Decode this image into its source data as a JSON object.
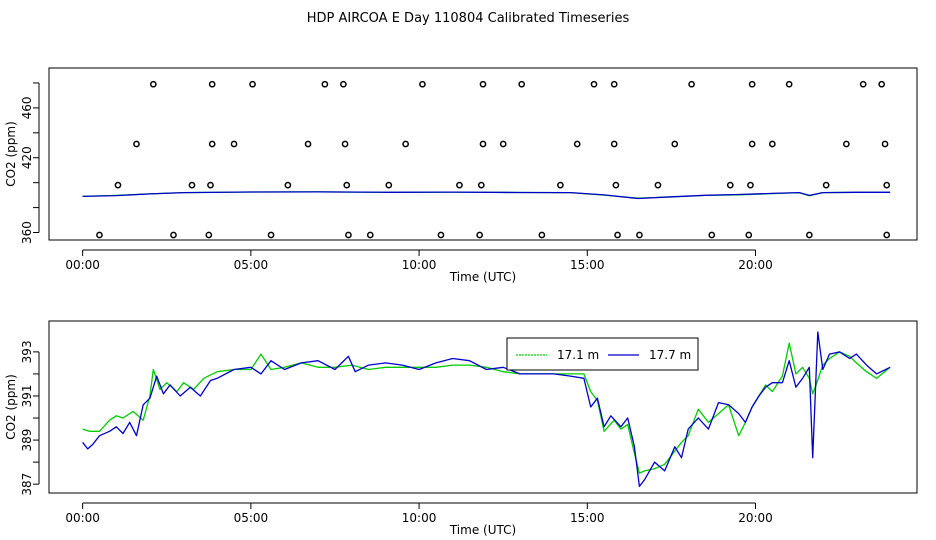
{
  "title": "HDP AIRCOA E  Day 110804  Calibrated Timeseries",
  "colors": {
    "series_a": "#00cc00",
    "series_b": "#0000cc",
    "points": "#000000"
  },
  "chart_data": [
    {
      "type": "scatter",
      "name": "top",
      "xlabel": "Time (UTC)",
      "ylabel": "CO2 (ppm)",
      "xlim": [
        -1,
        24.8
      ],
      "ylim": [
        354,
        492
      ],
      "x_ticks": [
        0,
        5,
        10,
        15,
        20
      ],
      "x_tick_labels": [
        "00:00",
        "05:00",
        "10:00",
        "15:00",
        "20:00"
      ],
      "y_ticks": [
        360,
        380,
        400,
        420,
        440,
        460,
        480
      ],
      "y_tick_labels": [
        "360",
        "",
        "",
        "420",
        "",
        "460",
        ""
      ],
      "points": [
        [
          2.1,
          479
        ],
        [
          3.85,
          479
        ],
        [
          5.05,
          479
        ],
        [
          7.2,
          479
        ],
        [
          7.75,
          479
        ],
        [
          10.1,
          479
        ],
        [
          11.9,
          479
        ],
        [
          13.05,
          479
        ],
        [
          15.2,
          479
        ],
        [
          15.8,
          479
        ],
        [
          18.1,
          479
        ],
        [
          19.9,
          479
        ],
        [
          21.0,
          479
        ],
        [
          23.2,
          479
        ],
        [
          23.75,
          479
        ],
        [
          1.6,
          431
        ],
        [
          3.85,
          431
        ],
        [
          4.5,
          431
        ],
        [
          6.7,
          431
        ],
        [
          7.8,
          431
        ],
        [
          9.6,
          431
        ],
        [
          11.9,
          431
        ],
        [
          12.5,
          431
        ],
        [
          14.7,
          431
        ],
        [
          15.8,
          431
        ],
        [
          17.6,
          431
        ],
        [
          19.9,
          431
        ],
        [
          20.5,
          431
        ],
        [
          22.7,
          431
        ],
        [
          23.85,
          431
        ],
        [
          1.05,
          398
        ],
        [
          3.25,
          398
        ],
        [
          3.8,
          398
        ],
        [
          6.1,
          398
        ],
        [
          7.85,
          398
        ],
        [
          9.1,
          398
        ],
        [
          11.2,
          398
        ],
        [
          11.85,
          398
        ],
        [
          14.2,
          398
        ],
        [
          15.85,
          398
        ],
        [
          17.1,
          398
        ],
        [
          19.25,
          398
        ],
        [
          19.85,
          398
        ],
        [
          22.1,
          398
        ],
        [
          23.9,
          398
        ],
        [
          0.5,
          358
        ],
        [
          2.7,
          358
        ],
        [
          3.75,
          358
        ],
        [
          5.6,
          358
        ],
        [
          7.9,
          358
        ],
        [
          8.55,
          358
        ],
        [
          10.65,
          358
        ],
        [
          11.8,
          358
        ],
        [
          13.65,
          358
        ],
        [
          15.9,
          358
        ],
        [
          16.55,
          358
        ],
        [
          18.7,
          358
        ],
        [
          19.8,
          358
        ],
        [
          21.6,
          358
        ],
        [
          23.9,
          358
        ]
      ],
      "series": [
        {
          "x": [
            0.0,
            1.0,
            2.0,
            3.0,
            5.0,
            7.0,
            9.0,
            11.0,
            13.0,
            14.5,
            15.5,
            16.5,
            17.5,
            18.5,
            19.5,
            20.5,
            21.3,
            21.6,
            22.0,
            23.0,
            24.0
          ],
          "y": [
            389,
            389.8,
            391,
            392,
            392.5,
            392.6,
            392.3,
            392.4,
            392.1,
            392,
            390,
            387.5,
            388.5,
            389.8,
            390.3,
            391.2,
            392,
            389.5,
            392,
            392.3,
            392.3
          ]
        },
        {
          "x": [
            0.0,
            1.0,
            2.0,
            3.0,
            5.0,
            7.0,
            9.0,
            11.0,
            13.0,
            14.5,
            15.5,
            16.5,
            17.5,
            18.5,
            19.5,
            20.5,
            21.3,
            21.6,
            22.0,
            23.0,
            24.0
          ],
          "y": [
            389,
            389.6,
            391,
            392,
            392.5,
            392.6,
            392.3,
            392.4,
            392.1,
            392,
            390.2,
            387.3,
            388.7,
            389.9,
            390.5,
            391.4,
            392,
            389.8,
            392,
            392.3,
            392.3
          ]
        }
      ]
    },
    {
      "type": "line",
      "name": "bottom",
      "xlabel": "Time (UTC)",
      "ylabel": "CO2 (ppm)",
      "xlim": [
        -1,
        24.8
      ],
      "ylim": [
        386.6,
        394.4
      ],
      "x_ticks": [
        0,
        5,
        10,
        15,
        20
      ],
      "x_tick_labels": [
        "00:00",
        "05:00",
        "10:00",
        "15:00",
        "20:00"
      ],
      "y_ticks": [
        387,
        388,
        389,
        390,
        391,
        392,
        393
      ],
      "y_tick_labels": [
        "387",
        "",
        "389",
        "",
        "391",
        "",
        "393"
      ],
      "legend": {
        "placement": "top-center",
        "entries": [
          "17.1 m",
          "17.7 m"
        ]
      },
      "series": [
        {
          "name": "17.1 m",
          "x": [
            0.0,
            0.2,
            0.5,
            0.8,
            1.0,
            1.2,
            1.5,
            1.8,
            2.0,
            2.1,
            2.3,
            2.5,
            2.8,
            3.0,
            3.3,
            3.6,
            4.0,
            4.5,
            5.0,
            5.3,
            5.6,
            6.0,
            6.5,
            7.0,
            7.5,
            8.0,
            8.5,
            9.0,
            9.5,
            10.0,
            10.5,
            11.0,
            11.5,
            12.0,
            12.5,
            13.0,
            13.5,
            14.0,
            14.5,
            14.9,
            15.1,
            15.3,
            15.5,
            15.8,
            16.0,
            16.2,
            16.4,
            16.55,
            16.7,
            17.0,
            17.3,
            17.6,
            17.8,
            18.0,
            18.3,
            18.6,
            18.9,
            19.2,
            19.5,
            19.7,
            19.9,
            20.1,
            20.3,
            20.5,
            20.8,
            21.0,
            21.2,
            21.4,
            21.6,
            21.7,
            21.8,
            22.0,
            22.2,
            22.5,
            22.8,
            23.0,
            23.3,
            23.6,
            24.0
          ],
          "y": [
            389.5,
            389.4,
            389.4,
            389.9,
            390.1,
            390.0,
            390.3,
            389.9,
            391.0,
            392.2,
            391.3,
            391.6,
            391.2,
            391.6,
            391.3,
            391.8,
            392.1,
            392.2,
            392.2,
            392.9,
            392.2,
            392.3,
            392.5,
            392.3,
            392.3,
            392.4,
            392.2,
            392.3,
            392.3,
            392.3,
            392.3,
            392.4,
            392.4,
            392.3,
            392.1,
            392.0,
            392.0,
            392.0,
            392.0,
            392.0,
            391.2,
            390.8,
            389.4,
            389.9,
            389.5,
            389.7,
            388.4,
            387.5,
            387.6,
            387.7,
            387.9,
            388.5,
            388.9,
            389.2,
            390.4,
            389.8,
            390.2,
            390.6,
            389.2,
            389.8,
            390.5,
            391.0,
            391.5,
            391.2,
            391.9,
            393.4,
            392.0,
            392.3,
            391.8,
            391.1,
            391.5,
            392.4,
            392.7,
            393.0,
            392.8,
            392.5,
            392.1,
            391.8,
            392.3
          ]
        },
        {
          "name": "17.7 m",
          "x": [
            0.0,
            0.15,
            0.3,
            0.5,
            0.8,
            1.0,
            1.2,
            1.4,
            1.6,
            1.8,
            2.0,
            2.2,
            2.4,
            2.6,
            2.9,
            3.2,
            3.5,
            3.8,
            4.0,
            4.5,
            5.0,
            5.3,
            5.6,
            6.0,
            6.5,
            7.0,
            7.5,
            7.9,
            8.1,
            8.5,
            9.0,
            9.5,
            10.0,
            10.5,
            11.0,
            11.5,
            12.0,
            12.5,
            13.0,
            13.5,
            14.0,
            14.5,
            14.9,
            15.1,
            15.3,
            15.5,
            15.7,
            16.0,
            16.2,
            16.4,
            16.55,
            16.7,
            17.0,
            17.3,
            17.6,
            17.8,
            18.0,
            18.3,
            18.6,
            18.9,
            19.2,
            19.5,
            19.7,
            19.9,
            20.1,
            20.3,
            20.5,
            20.8,
            21.0,
            21.2,
            21.4,
            21.6,
            21.7,
            21.85,
            22.0,
            22.2,
            22.5,
            22.8,
            23.0,
            23.3,
            23.6,
            24.0
          ],
          "y": [
            388.9,
            388.6,
            388.8,
            389.2,
            389.4,
            389.6,
            389.3,
            389.8,
            389.2,
            390.6,
            390.9,
            391.9,
            391.1,
            391.5,
            391.0,
            391.4,
            391.0,
            391.7,
            391.8,
            392.2,
            392.3,
            392.0,
            392.6,
            392.2,
            392.5,
            392.6,
            392.2,
            392.8,
            392.1,
            392.4,
            392.5,
            392.4,
            392.2,
            392.5,
            392.7,
            392.6,
            392.2,
            392.3,
            392.0,
            392.0,
            392.0,
            391.9,
            391.8,
            390.5,
            390.9,
            389.6,
            390.1,
            389.6,
            390.0,
            388.7,
            386.9,
            387.2,
            388.0,
            387.6,
            388.7,
            388.2,
            389.5,
            390.0,
            389.5,
            390.7,
            390.6,
            390.2,
            389.8,
            390.5,
            391.0,
            391.4,
            391.6,
            391.6,
            392.6,
            391.4,
            391.8,
            392.3,
            388.2,
            393.9,
            392.2,
            392.9,
            393.0,
            392.7,
            392.9,
            392.4,
            392.0,
            392.3
          ]
        }
      ]
    }
  ]
}
